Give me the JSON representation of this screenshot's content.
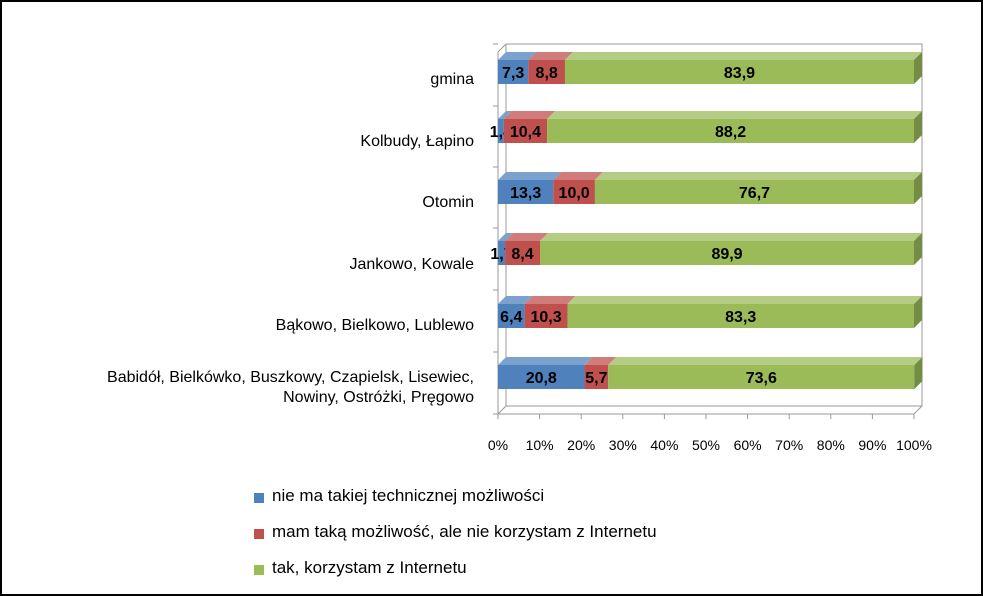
{
  "chart_data": {
    "type": "bar",
    "orientation": "horizontal",
    "stacked": "percent",
    "categories": [
      [
        "gmina"
      ],
      [
        "Kolbudy, Łapino"
      ],
      [
        "Otomin"
      ],
      [
        "Jankowo, Kowale"
      ],
      [
        "Bąkowo, Bielkowo, Lublewo"
      ],
      [
        "Babidół, Bielkówko, Buszkowy, Czapielsk, Lisewiec,",
        "Nowiny, Ostróżki, Pręgowo"
      ]
    ],
    "series": [
      {
        "name": "nie ma takiej technicznej możliwości",
        "color": "#4F81BD",
        "values": [
          7.3,
          1.4,
          13.3,
          1.7,
          6.4,
          20.8
        ],
        "labels": [
          "7,3",
          "1,4",
          "13,3",
          "1,7",
          "6,4",
          "20,8"
        ]
      },
      {
        "name": "mam taką możliwość, ale nie korzystam z Internetu",
        "color": "#C0504D",
        "values": [
          8.8,
          10.4,
          10.0,
          8.4,
          10.3,
          5.7
        ],
        "labels": [
          "8,8",
          "10,4",
          "10,0",
          "8,4",
          "10,3",
          "5,7"
        ]
      },
      {
        "name": "tak, korzystam z Internetu",
        "color": "#9BBB59",
        "values": [
          83.9,
          88.2,
          76.7,
          89.9,
          83.3,
          73.6
        ],
        "labels": [
          "83,9",
          "88,2",
          "76,7",
          "89,9",
          "83,3",
          "73,6"
        ]
      }
    ],
    "xlim": [
      0,
      100
    ],
    "xticks": [
      "0%",
      "10%",
      "20%",
      "30%",
      "40%",
      "50%",
      "60%",
      "70%",
      "80%",
      "90%",
      "100%"
    ],
    "grid": false,
    "legend_position": "bottom",
    "style": "3d"
  }
}
